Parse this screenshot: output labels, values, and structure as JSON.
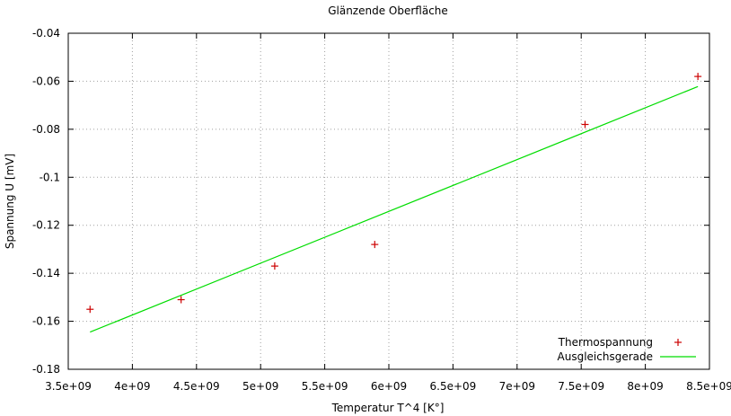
{
  "chart_data": {
    "type": "scatter",
    "title": "Glänzende Oberfläche",
    "xlabel": "Temperatur T^4 [K°]",
    "ylabel": "Spannung U [mV]",
    "xlim": [
      3500000000,
      8500000000
    ],
    "ylim": [
      -0.18,
      -0.04
    ],
    "x_ticks": [
      3500000000,
      4000000000,
      4500000000,
      5000000000,
      5500000000,
      6000000000,
      6500000000,
      7000000000,
      7500000000,
      8000000000,
      8500000000
    ],
    "x_tick_labels": [
      "3.5e+09",
      "4e+09",
      "4.5e+09",
      "5e+09",
      "5.5e+09",
      "6e+09",
      "6.5e+09",
      "7e+09",
      "7.5e+09",
      "8e+09",
      "8.5e+09"
    ],
    "y_ticks": [
      -0.18,
      -0.16,
      -0.14,
      -0.12,
      -0.1,
      -0.08,
      -0.06,
      -0.04
    ],
    "y_tick_labels": [
      "-0.18",
      "-0.16",
      "-0.14",
      "-0.12",
      "-0.1",
      "-0.08",
      "-0.06",
      "-0.04"
    ],
    "grid": true,
    "legend_position": "bottom-right",
    "series": [
      {
        "name": "Thermospannung",
        "kind": "points",
        "marker": "plus",
        "color": "#cc0000",
        "x": [
          3670000000,
          4380000000,
          5110000000,
          5890000000,
          7530000000,
          8410000000
        ],
        "y": [
          -0.155,
          -0.151,
          -0.137,
          -0.128,
          -0.078,
          -0.058
        ]
      },
      {
        "name": "Ausgleichsgerade",
        "kind": "line",
        "color": "#00dd00",
        "x": [
          3670000000,
          8410000000
        ],
        "y": [
          -0.1645,
          -0.0622
        ]
      }
    ]
  }
}
